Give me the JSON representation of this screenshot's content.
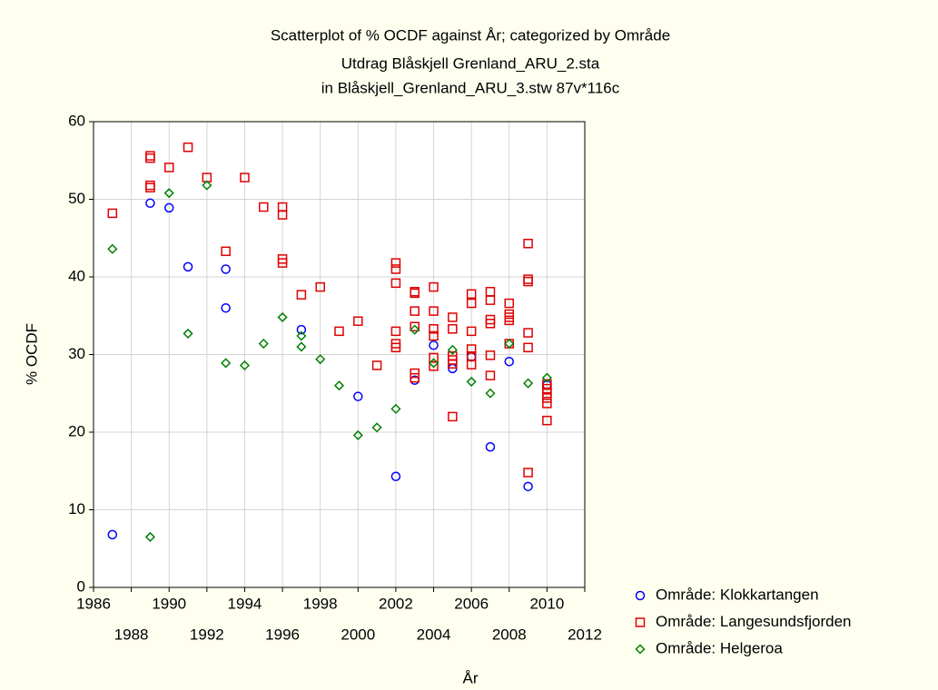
{
  "chart_data": {
    "type": "scatter",
    "title": "Scatterplot of % OCDF against År; categorized by Område",
    "subtitle": [
      "Utdrag Blåskjell Grenland_ARU_2.sta",
      "in Blåskjell_Grenland_ARU_3.stw 87v*116c"
    ],
    "x_label": "År",
    "y_label": "% OCDF",
    "xlim": [
      1986,
      2012
    ],
    "xticks": [
      1986,
      1988,
      1990,
      1992,
      1994,
      1996,
      1998,
      2000,
      2002,
      2004,
      2006,
      2008,
      2010,
      2012
    ],
    "ylim": [
      0,
      60
    ],
    "yticks": [
      0,
      10,
      20,
      30,
      40,
      50,
      60
    ],
    "grid": true,
    "legend": "bottom-right",
    "series": [
      {
        "name": "Område: Klokkartangen",
        "color": "#0000ff",
        "marker": "circle",
        "x": [
          1987,
          1989,
          1990,
          1991,
          1993,
          1993,
          1997,
          2000,
          2002,
          2003,
          2004,
          2005,
          2006,
          2007,
          2008,
          2009,
          2010
        ],
        "values": [
          6.8,
          49.5,
          48.9,
          41.3,
          41.0,
          36.0,
          33.2,
          24.6,
          14.3,
          26.7,
          31.2,
          28.2,
          29.7,
          18.1,
          29.1,
          13.0,
          26.1
        ]
      },
      {
        "name": "Område: Langesundsfjorden",
        "color": "#e00000",
        "marker": "square",
        "x": [
          1987,
          1989,
          1989,
          1989,
          1989,
          1990,
          1991,
          1992,
          1993,
          1994,
          1995,
          1996,
          1996,
          1996,
          1996,
          1997,
          1998,
          1999,
          2000,
          2001,
          2002,
          2002,
          2002,
          2002,
          2002,
          2002,
          2003,
          2003,
          2003,
          2003,
          2003,
          2003,
          2004,
          2004,
          2004,
          2004,
          2004,
          2004,
          2005,
          2005,
          2005,
          2005,
          2005,
          2005,
          2006,
          2006,
          2006,
          2006,
          2006,
          2006,
          2007,
          2007,
          2007,
          2007,
          2007,
          2007,
          2008,
          2008,
          2008,
          2008,
          2008,
          2009,
          2009,
          2009,
          2009,
          2009,
          2009,
          2010,
          2010,
          2010,
          2010,
          2010,
          2010
        ],
        "values": [
          48.2,
          55.6,
          55.3,
          51.8,
          51.5,
          54.1,
          56.7,
          52.8,
          43.3,
          52.8,
          49.0,
          49.0,
          48.0,
          42.3,
          41.8,
          37.7,
          38.7,
          33.0,
          34.3,
          28.6,
          41.8,
          41.0,
          39.2,
          33.0,
          31.4,
          30.9,
          38.1,
          37.9,
          35.6,
          33.6,
          27.6,
          27.0,
          38.7,
          35.6,
          33.3,
          32.4,
          29.6,
          28.5,
          34.8,
          33.3,
          29.8,
          29.3,
          28.8,
          22.0,
          37.8,
          36.6,
          33.0,
          30.7,
          29.8,
          28.7,
          38.1,
          37.0,
          34.5,
          34.0,
          29.9,
          27.3,
          36.6,
          35.2,
          34.8,
          34.4,
          31.4,
          44.3,
          39.7,
          39.4,
          32.8,
          30.9,
          14.8,
          26.2,
          25.6,
          25.0,
          24.4,
          23.7,
          21.5
        ]
      },
      {
        "name": "Område: Helgeroa",
        "color": "#008000",
        "marker": "diamond",
        "x": [
          1987,
          1989,
          1990,
          1991,
          1992,
          1993,
          1994,
          1995,
          1996,
          1997,
          1997,
          1998,
          1999,
          2000,
          2001,
          2002,
          2003,
          2004,
          2005,
          2006,
          2007,
          2008,
          2009,
          2010
        ],
        "values": [
          43.6,
          6.5,
          50.8,
          32.7,
          51.8,
          28.9,
          28.6,
          31.4,
          34.8,
          32.4,
          31.0,
          29.4,
          26.0,
          19.6,
          20.6,
          23.0,
          33.2,
          28.9,
          30.6,
          26.5,
          25.0,
          31.4,
          26.3,
          27.0
        ]
      }
    ]
  }
}
